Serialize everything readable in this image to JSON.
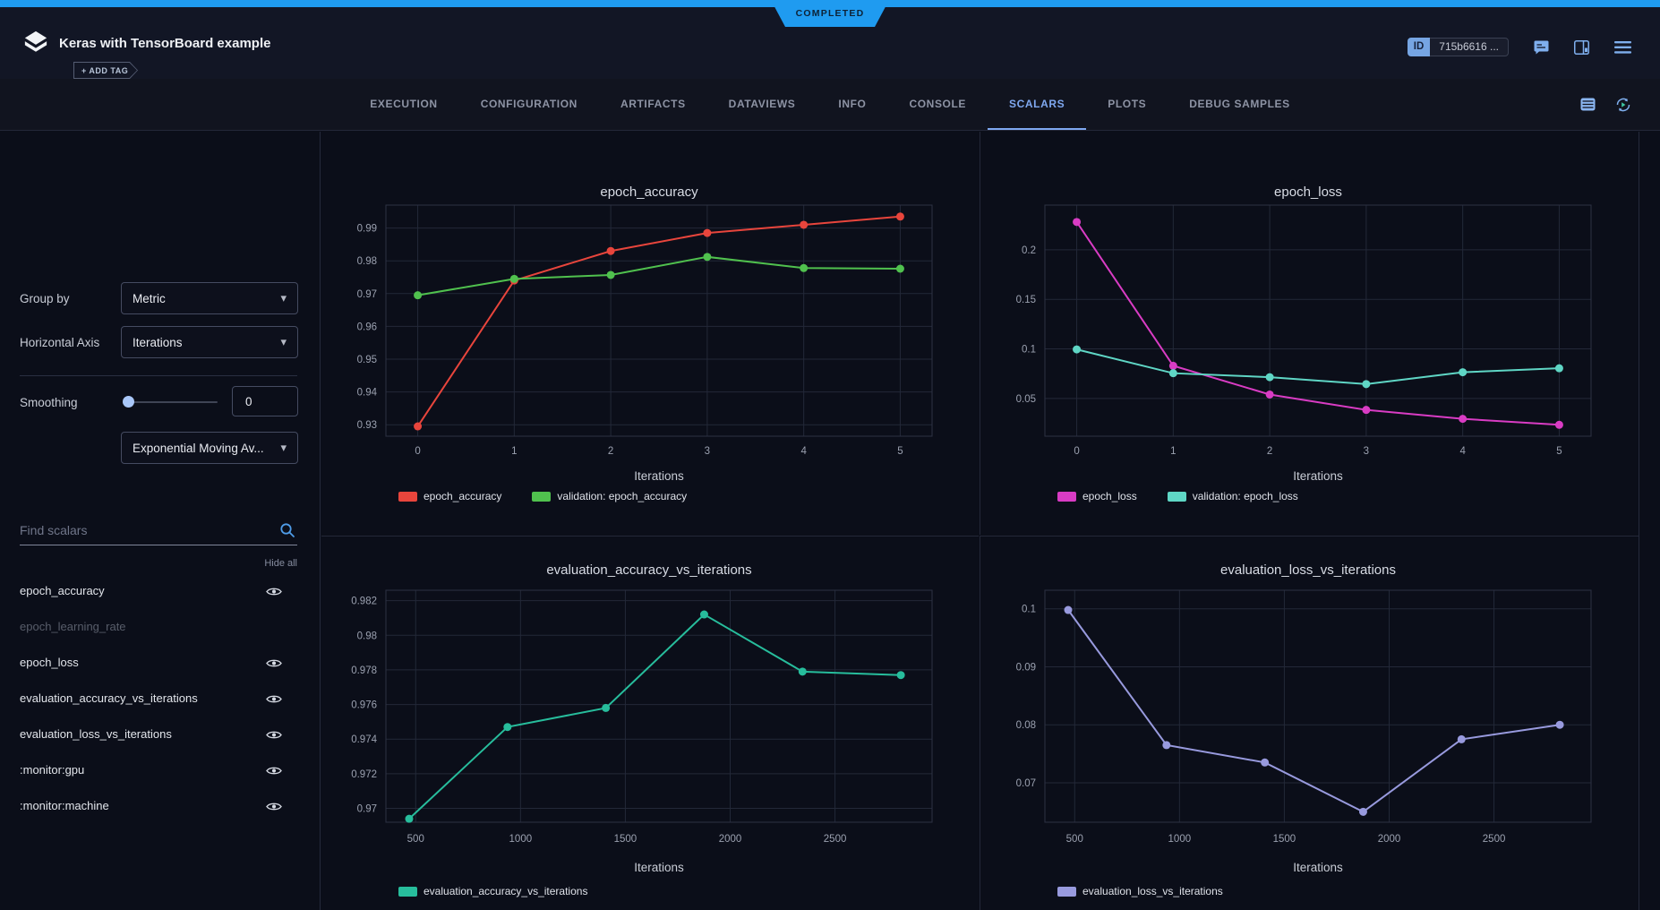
{
  "header": {
    "title": "Keras with TensorBoard example",
    "add_tag_label": "+ ADD TAG",
    "status_ribbon": "COMPLETED",
    "id_label": "ID",
    "id_value": "715b6616 ...",
    "accent_color": "#1f9bf0"
  },
  "icons": {
    "app-logo": "layered-diamond",
    "add-tag": "tag-plus",
    "comment": "note-with-lines",
    "panels": "side-panel-layout",
    "menu": "hamburger",
    "table": "table-rows",
    "auto-refresh": "circular-arrows-play",
    "search": "magnifier",
    "eye": "visibility-eye",
    "chevron": "▾"
  },
  "tabs": {
    "items": [
      {
        "label": "EXECUTION",
        "active": false
      },
      {
        "label": "CONFIGURATION",
        "active": false
      },
      {
        "label": "ARTIFACTS",
        "active": false
      },
      {
        "label": "DATAVIEWS",
        "active": false
      },
      {
        "label": "INFO",
        "active": false
      },
      {
        "label": "CONSOLE",
        "active": false
      },
      {
        "label": "SCALARS",
        "active": true
      },
      {
        "label": "PLOTS",
        "active": false
      },
      {
        "label": "DEBUG SAMPLES",
        "active": false
      }
    ]
  },
  "sidebar": {
    "group_by_label": "Group by",
    "group_by_value": "Metric",
    "horizontal_axis_label": "Horizontal Axis",
    "horizontal_axis_value": "Iterations",
    "smoothing_label": "Smoothing",
    "smoothing_value": "0",
    "smoothing_type_value": "Exponential Moving Av...",
    "search_placeholder": "Find scalars",
    "hide_all_label": "Hide all",
    "metrics": [
      {
        "label": "epoch_accuracy",
        "visible": true,
        "dimmed": false
      },
      {
        "label": "epoch_learning_rate",
        "visible": false,
        "dimmed": true
      },
      {
        "label": "epoch_loss",
        "visible": true,
        "dimmed": false
      },
      {
        "label": "evaluation_accuracy_vs_iterations",
        "visible": true,
        "dimmed": false
      },
      {
        "label": "evaluation_loss_vs_iterations",
        "visible": true,
        "dimmed": false
      },
      {
        "label": ":monitor:gpu",
        "visible": true,
        "dimmed": false
      },
      {
        "label": ":monitor:machine",
        "visible": true,
        "dimmed": false
      }
    ]
  },
  "chart_data": [
    {
      "type": "line",
      "title": "epoch_accuracy",
      "xlabel": "Iterations",
      "grid": true,
      "legend_position": "bottom-left",
      "x": [
        0,
        1,
        2,
        3,
        4,
        5
      ],
      "xlim": [
        -0.33,
        5.33
      ],
      "ylim": [
        0.9265,
        0.997
      ],
      "xticks": [
        {
          "v": 0,
          "label": "0"
        },
        {
          "v": 1,
          "label": "1"
        },
        {
          "v": 2,
          "label": "2"
        },
        {
          "v": 3,
          "label": "3"
        },
        {
          "v": 4,
          "label": "4"
        },
        {
          "v": 5,
          "label": "5"
        }
      ],
      "yticks": [
        {
          "v": 0.99,
          "label": "0.99"
        },
        {
          "v": 0.98,
          "label": "0.98"
        },
        {
          "v": 0.97,
          "label": "0.97"
        },
        {
          "v": 0.96,
          "label": "0.96"
        },
        {
          "v": 0.95,
          "label": "0.95"
        },
        {
          "v": 0.94,
          "label": "0.94"
        },
        {
          "v": 0.93,
          "label": "0.93"
        }
      ],
      "series": [
        {
          "name": "epoch_accuracy",
          "color": "#e8453c",
          "values": [
            0.9295,
            0.974,
            0.983,
            0.9885,
            0.991,
            0.9935
          ]
        },
        {
          "name": "validation: epoch_accuracy",
          "color": "#50c14e",
          "values": [
            0.9695,
            0.9745,
            0.9757,
            0.9812,
            0.9778,
            0.9776
          ]
        }
      ]
    },
    {
      "type": "line",
      "title": "epoch_loss",
      "xlabel": "Iterations",
      "grid": true,
      "legend_position": "bottom-left",
      "x": [
        0,
        1,
        2,
        3,
        4,
        5
      ],
      "xlim": [
        -0.33,
        5.33
      ],
      "ylim": [
        0.012,
        0.245
      ],
      "xticks": [
        {
          "v": 0,
          "label": "0"
        },
        {
          "v": 1,
          "label": "1"
        },
        {
          "v": 2,
          "label": "2"
        },
        {
          "v": 3,
          "label": "3"
        },
        {
          "v": 4,
          "label": "4"
        },
        {
          "v": 5,
          "label": "5"
        }
      ],
      "yticks": [
        {
          "v": 0.2,
          "label": "0.2"
        },
        {
          "v": 0.15,
          "label": "0.15"
        },
        {
          "v": 0.1,
          "label": "0.1"
        },
        {
          "v": 0.05,
          "label": "0.05"
        }
      ],
      "series": [
        {
          "name": "epoch_loss",
          "color": "#d93cc4",
          "values": [
            0.228,
            0.083,
            0.054,
            0.0385,
            0.0295,
            0.0235
          ]
        },
        {
          "name": "validation: epoch_loss",
          "color": "#5fd6c5",
          "values": [
            0.0995,
            0.0755,
            0.0715,
            0.0645,
            0.0765,
            0.0805
          ]
        }
      ]
    },
    {
      "type": "line",
      "title": "evaluation_accuracy_vs_iterations",
      "xlabel": "Iterations",
      "grid": true,
      "legend_position": "bottom-left",
      "x": [
        469,
        938,
        1407,
        1876,
        2345,
        2814
      ],
      "xlim": [
        358,
        2963
      ],
      "ylim": [
        0.9692,
        0.9826
      ],
      "xticks": [
        {
          "v": 500,
          "label": "500"
        },
        {
          "v": 1000,
          "label": "1000"
        },
        {
          "v": 1500,
          "label": "1500"
        },
        {
          "v": 2000,
          "label": "2000"
        },
        {
          "v": 2500,
          "label": "2500"
        }
      ],
      "yticks": [
        {
          "v": 0.982,
          "label": "0.982"
        },
        {
          "v": 0.98,
          "label": "0.98"
        },
        {
          "v": 0.978,
          "label": "0.978"
        },
        {
          "v": 0.976,
          "label": "0.976"
        },
        {
          "v": 0.974,
          "label": "0.974"
        },
        {
          "v": 0.972,
          "label": "0.972"
        },
        {
          "v": 0.97,
          "label": "0.97"
        }
      ],
      "series": [
        {
          "name": "evaluation_accuracy_vs_iterations",
          "color": "#27bd9c",
          "values": [
            0.9694,
            0.9747,
            0.9758,
            0.9812,
            0.9779,
            0.9777
          ]
        }
      ]
    },
    {
      "type": "line",
      "title": "evaluation_loss_vs_iterations",
      "xlabel": "Iterations",
      "grid": true,
      "legend_position": "bottom-left",
      "x": [
        469,
        938,
        1407,
        1876,
        2345,
        2814
      ],
      "xlim": [
        358,
        2963
      ],
      "ylim": [
        0.0632,
        0.1032
      ],
      "xticks": [
        {
          "v": 500,
          "label": "500"
        },
        {
          "v": 1000,
          "label": "1000"
        },
        {
          "v": 1500,
          "label": "1500"
        },
        {
          "v": 2000,
          "label": "2000"
        },
        {
          "v": 2500,
          "label": "2500"
        }
      ],
      "yticks": [
        {
          "v": 0.1,
          "label": "0.1"
        },
        {
          "v": 0.09,
          "label": "0.09"
        },
        {
          "v": 0.08,
          "label": "0.08"
        },
        {
          "v": 0.07,
          "label": "0.07"
        }
      ],
      "series": [
        {
          "name": "evaluation_loss_vs_iterations",
          "color": "#989ade",
          "values": [
            0.0998,
            0.0765,
            0.0735,
            0.065,
            0.0775,
            0.08
          ]
        }
      ]
    }
  ]
}
